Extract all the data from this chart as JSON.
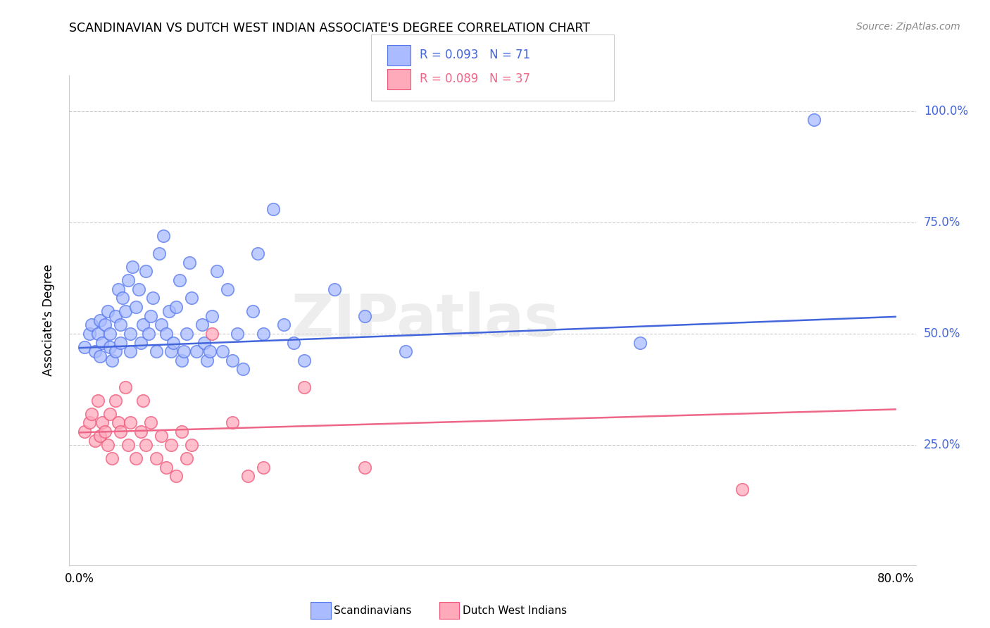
{
  "title": "SCANDINAVIAN VS DUTCH WEST INDIAN ASSOCIATE'S DEGREE CORRELATION CHART",
  "source": "Source: ZipAtlas.com",
  "ylabel": "Associate's Degree",
  "ytick_labels": [
    "100.0%",
    "75.0%",
    "50.0%",
    "25.0%"
  ],
  "ytick_values": [
    1.0,
    0.75,
    0.5,
    0.25
  ],
  "xtick_labels": [
    "0.0%",
    "80.0%"
  ],
  "xtick_values": [
    0.0,
    0.8
  ],
  "xlim": [
    -0.01,
    0.82
  ],
  "ylim": [
    -0.02,
    1.08
  ],
  "watermark": "ZIPatlas",
  "legend_blue_text": "R = 0.093   N = 71",
  "legend_pink_text": "R = 0.089   N = 37",
  "blue_scatter_color": "#aabbff",
  "pink_scatter_color": "#ffaabb",
  "blue_edge_color": "#5577ee",
  "pink_edge_color": "#ee5577",
  "line_blue": "#4466dd",
  "line_pink": "#ee6688",
  "tick_label_color": "#4466dd",
  "bottom_legend_blue": "Scandinavians",
  "bottom_legend_pink": "Dutch West Indians",
  "scandinavians_x": [
    0.005,
    0.01,
    0.012,
    0.015,
    0.018,
    0.02,
    0.02,
    0.022,
    0.025,
    0.028,
    0.03,
    0.03,
    0.032,
    0.035,
    0.035,
    0.038,
    0.04,
    0.04,
    0.042,
    0.045,
    0.048,
    0.05,
    0.05,
    0.052,
    0.055,
    0.058,
    0.06,
    0.062,
    0.065,
    0.068,
    0.07,
    0.072,
    0.075,
    0.078,
    0.08,
    0.082,
    0.085,
    0.088,
    0.09,
    0.092,
    0.095,
    0.098,
    0.1,
    0.102,
    0.105,
    0.108,
    0.11,
    0.115,
    0.12,
    0.122,
    0.125,
    0.128,
    0.13,
    0.135,
    0.14,
    0.145,
    0.15,
    0.155,
    0.16,
    0.17,
    0.175,
    0.18,
    0.19,
    0.2,
    0.21,
    0.22,
    0.25,
    0.28,
    0.32,
    0.55,
    0.72
  ],
  "scandinavians_y": [
    0.47,
    0.5,
    0.52,
    0.46,
    0.5,
    0.45,
    0.53,
    0.48,
    0.52,
    0.55,
    0.47,
    0.5,
    0.44,
    0.46,
    0.54,
    0.6,
    0.48,
    0.52,
    0.58,
    0.55,
    0.62,
    0.46,
    0.5,
    0.65,
    0.56,
    0.6,
    0.48,
    0.52,
    0.64,
    0.5,
    0.54,
    0.58,
    0.46,
    0.68,
    0.52,
    0.72,
    0.5,
    0.55,
    0.46,
    0.48,
    0.56,
    0.62,
    0.44,
    0.46,
    0.5,
    0.66,
    0.58,
    0.46,
    0.52,
    0.48,
    0.44,
    0.46,
    0.54,
    0.64,
    0.46,
    0.6,
    0.44,
    0.5,
    0.42,
    0.55,
    0.68,
    0.5,
    0.78,
    0.52,
    0.48,
    0.44,
    0.6,
    0.54,
    0.46,
    0.48,
    0.98
  ],
  "dutch_x": [
    0.005,
    0.01,
    0.012,
    0.015,
    0.018,
    0.02,
    0.022,
    0.025,
    0.028,
    0.03,
    0.032,
    0.035,
    0.038,
    0.04,
    0.045,
    0.048,
    0.05,
    0.055,
    0.06,
    0.062,
    0.065,
    0.07,
    0.075,
    0.08,
    0.085,
    0.09,
    0.095,
    0.1,
    0.105,
    0.11,
    0.13,
    0.15,
    0.165,
    0.18,
    0.22,
    0.28,
    0.65
  ],
  "dutch_y": [
    0.28,
    0.3,
    0.32,
    0.26,
    0.35,
    0.27,
    0.3,
    0.28,
    0.25,
    0.32,
    0.22,
    0.35,
    0.3,
    0.28,
    0.38,
    0.25,
    0.3,
    0.22,
    0.28,
    0.35,
    0.25,
    0.3,
    0.22,
    0.27,
    0.2,
    0.25,
    0.18,
    0.28,
    0.22,
    0.25,
    0.5,
    0.3,
    0.18,
    0.2,
    0.38,
    0.2,
    0.15
  ],
  "blue_line_x": [
    0.0,
    0.8
  ],
  "blue_line_y": [
    0.468,
    0.538
  ],
  "pink_line_x": [
    0.0,
    0.8
  ],
  "pink_line_y": [
    0.278,
    0.33
  ]
}
